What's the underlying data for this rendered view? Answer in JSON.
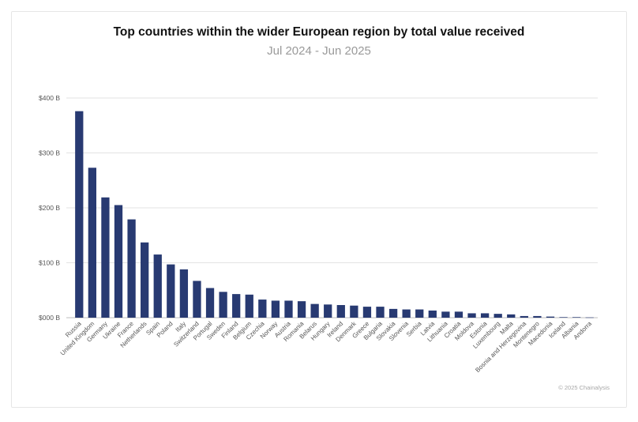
{
  "chart_data": {
    "type": "bar",
    "title": "Top countries within the wider European region by total value received",
    "subtitle": "Jul 2024 - Jun 2025",
    "xlabel": "",
    "ylabel": "",
    "ylim": [
      0,
      400
    ],
    "y_ticks": [
      "$000 B",
      "$100 B",
      "$200 B",
      "$300 B",
      "$400 B"
    ],
    "y_tick_values": [
      0,
      100,
      200,
      300,
      400
    ],
    "grid": true,
    "bar_color": "#283a72",
    "categories": [
      "Russia",
      "United Kingdom",
      "Germany",
      "Ukraine",
      "France",
      "Netherlands",
      "Spain",
      "Poland",
      "Italy",
      "Switzerland",
      "Portugal",
      "Sweden",
      "Finland",
      "Belgium",
      "Czechia",
      "Norway",
      "Austria",
      "Romania",
      "Belarus",
      "Hungary",
      "Ireland",
      "Denmark",
      "Greece",
      "Bulgaria",
      "Slovakia",
      "Slovenia",
      "Serbia",
      "Latvia",
      "Lithuania",
      "Croatia",
      "Moldova",
      "Estonia",
      "Luxembourg",
      "Malta",
      "Bosnia and Herzegovina",
      "Montenegro",
      "Macedonia",
      "Iceland",
      "Albania",
      "Andorra"
    ],
    "values": [
      376,
      273,
      219,
      205,
      179,
      137,
      115,
      97,
      88,
      67,
      54,
      47,
      43,
      42,
      33,
      31,
      31,
      30,
      25,
      24,
      23,
      22,
      20,
      20,
      16,
      15,
      15,
      13,
      11,
      11,
      8,
      8,
      7,
      6,
      3,
      3,
      2,
      1,
      1,
      0.5
    ]
  },
  "footer": {
    "credit": "© 2025 Chainalysis"
  }
}
